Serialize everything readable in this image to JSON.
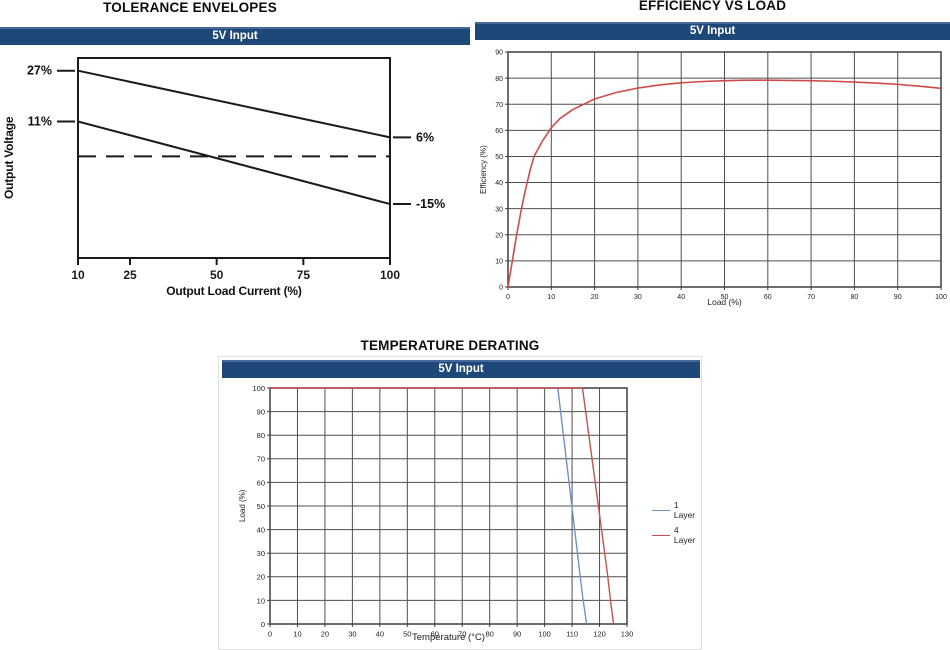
{
  "colors": {
    "header_bg": "#1e4878",
    "header_text": "#ffffff",
    "grid": "#4f4f4f",
    "frame": "#3f3f3f",
    "tolerance_line": "#1a1a1a",
    "efficiency_curve": "#cf4b4b",
    "layer1_blue": "#6e93c6",
    "layer4_red": "#c4534e"
  },
  "chart_data": [
    {
      "id": "tolerance-envelopes",
      "type": "line",
      "title": "TOLERANCE ENVELOPES",
      "panel_label": "5V Input",
      "xlabel": "Output Load Current (%)",
      "ylabel": "Output Voltage",
      "xlim": [
        10,
        100
      ],
      "ylim": [
        -32,
        31
      ],
      "x_ticks": [
        10,
        25,
        50,
        75,
        100
      ],
      "grid": false,
      "series": [
        {
          "name": "upper-tolerance-envelope",
          "x": [
            10,
            100
          ],
          "y": [
            27,
            6
          ],
          "left_label": "27%",
          "right_label": "6%",
          "style": "solid",
          "color": "#1a1a1a"
        },
        {
          "name": "lower-tolerance-envelope",
          "x": [
            10,
            100
          ],
          "y": [
            11,
            -15
          ],
          "left_label": "11%",
          "right_label": "-15%",
          "style": "solid",
          "color": "#1a1a1a"
        },
        {
          "name": "nominal-output-voltage",
          "x": [
            10,
            100
          ],
          "y": [
            0,
            0
          ],
          "style": "dashed",
          "color": "#1a1a1a"
        }
      ]
    },
    {
      "id": "efficiency-vs-load",
      "type": "line",
      "title": "EFFICIENCY VS LOAD",
      "panel_label": "5V Input",
      "xlabel": "Load  (%)",
      "ylabel": "Efficiency  (%)",
      "xlim": [
        0,
        100
      ],
      "ylim": [
        0,
        90
      ],
      "x_ticks": [
        0,
        10,
        20,
        30,
        40,
        50,
        60,
        70,
        80,
        90,
        100
      ],
      "y_ticks": [
        0,
        10,
        20,
        30,
        40,
        50,
        60,
        70,
        80,
        90
      ],
      "grid": true,
      "series": [
        {
          "name": "efficiency",
          "color": "#cf4b4b",
          "width": 1.6,
          "x": [
            0,
            1,
            2,
            3,
            4,
            5,
            6,
            8,
            10,
            12,
            15,
            20,
            25,
            30,
            35,
            40,
            45,
            50,
            55,
            60,
            65,
            70,
            75,
            80,
            85,
            90,
            95,
            100
          ],
          "y": [
            0,
            10,
            20,
            29,
            37,
            44,
            50,
            56,
            61,
            64.5,
            68,
            72,
            74.5,
            76.2,
            77.4,
            78.2,
            78.7,
            79.0,
            79.2,
            79.2,
            79.1,
            79.0,
            78.8,
            78.5,
            78.1,
            77.6,
            76.9,
            76.1
          ]
        }
      ]
    },
    {
      "id": "temperature-derating",
      "type": "line",
      "title": "TEMPERATURE DERATING",
      "panel_label": "5V Input",
      "xlabel": "Temperature (°C)",
      "ylabel": "Load  (%)",
      "xlim": [
        0,
        130
      ],
      "ylim": [
        0,
        100
      ],
      "x_ticks": [
        0,
        10,
        20,
        30,
        40,
        50,
        60,
        70,
        80,
        90,
        100,
        110,
        120,
        130
      ],
      "y_ticks": [
        0,
        10,
        20,
        30,
        40,
        50,
        60,
        70,
        80,
        90,
        100
      ],
      "grid": true,
      "legend_position": "right",
      "series": [
        {
          "name": "1 Layer",
          "color": "#6e93c6",
          "width": 1.4,
          "x": [
            0,
            104.8,
            113.8,
            115.3
          ],
          "y": [
            100,
            100,
            12,
            0
          ]
        },
        {
          "name": "4 Layer",
          "color": "#c4534e",
          "width": 1.4,
          "x": [
            0,
            113.8,
            122.8,
            124.2,
            125.1
          ],
          "y": [
            100,
            100,
            22,
            8,
            0
          ]
        }
      ]
    }
  ]
}
